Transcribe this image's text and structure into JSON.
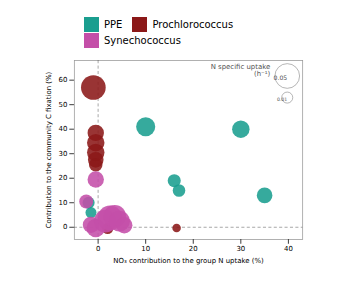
{
  "chart_data": {
    "type": "scatter",
    "xlabel": "NO₃ contribution to the group N uptake (%)",
    "ylabel": "Contribution to the community C fixation (%)",
    "xlim": [
      -5,
      43
    ],
    "ylim": [
      -5,
      68
    ],
    "xticks": [
      0,
      10,
      20,
      30,
      40
    ],
    "yticks": [
      0,
      10,
      20,
      30,
      40,
      50,
      60
    ],
    "vline_x": 0,
    "hline_y": 0,
    "legend": "top",
    "series": [
      {
        "name": "PPE",
        "color": "#1a9e8f",
        "x": [
          -2.0,
          -1.5,
          10.0,
          16.0,
          17.0,
          30.0,
          35.0
        ],
        "y": [
          10.0,
          6.0,
          41.0,
          19.0,
          15.0,
          40.0,
          13.0
        ],
        "sizes": [
          0.012,
          0.01,
          0.03,
          0.014,
          0.013,
          0.025,
          0.02
        ]
      },
      {
        "name": "Prochlorococcus",
        "color": "#8b1818",
        "x": [
          -1.0,
          -0.5,
          -0.5,
          -0.5,
          -0.5,
          -0.5,
          2.0,
          16.5
        ],
        "y": [
          57.0,
          38.5,
          34.5,
          30.5,
          27.5,
          25.5,
          -0.5,
          -0.3
        ],
        "sizes": [
          0.05,
          0.022,
          0.025,
          0.025,
          0.02,
          0.015,
          0.01,
          0.006
        ]
      },
      {
        "name": "Synechococcus",
        "color": "#c44fa8",
        "x": [
          -2.5,
          -1.5,
          -0.5,
          -0.5,
          1.5,
          2.5,
          3.5,
          4.5,
          5.5
        ],
        "y": [
          10.5,
          1.0,
          19.5,
          -0.3,
          2.5,
          3.8,
          4.5,
          2.5,
          0.8
        ],
        "sizes": [
          0.016,
          0.022,
          0.022,
          0.028,
          0.042,
          0.05,
          0.042,
          0.036,
          0.022
        ]
      }
    ],
    "size_legend": {
      "values": [
        0.05,
        0.01
      ],
      "label": "N specific uptake\n(h⁻¹)"
    }
  }
}
